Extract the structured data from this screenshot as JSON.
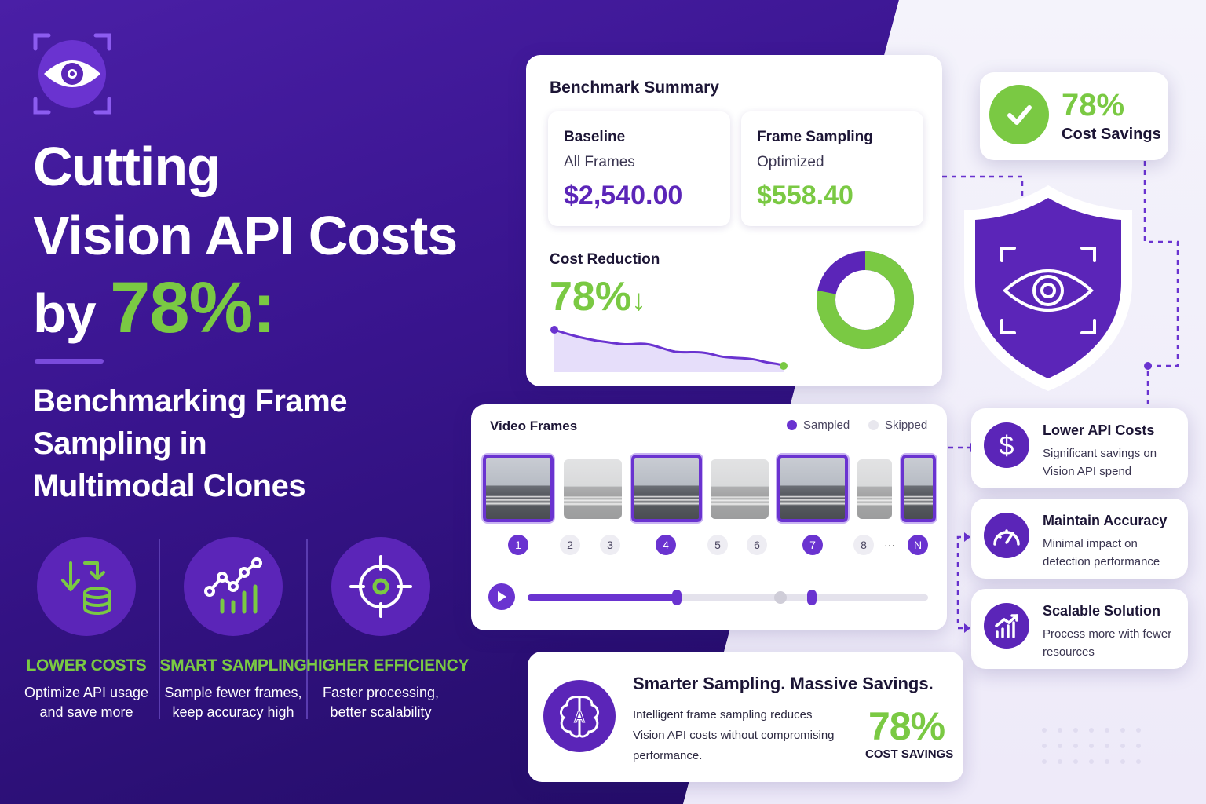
{
  "hero": {
    "line1": "Cutting",
    "line2": "Vision API Costs",
    "line3_prefix": "by",
    "line3_pct": "78%:",
    "subtitle_1": "Benchmarking Frame",
    "subtitle_2": "Sampling in",
    "subtitle_3": "Multimodal Clones"
  },
  "features": [
    {
      "title": "LOWER COSTS",
      "desc1": "Optimize API usage",
      "desc2": "and save more",
      "icon": "coins-arrow-icon"
    },
    {
      "title": "SMART SAMPLING",
      "desc1": "Sample fewer frames,",
      "desc2": "keep accuracy high",
      "icon": "chart-trend-icon"
    },
    {
      "title": "HIGHER EFFICIENCY",
      "desc1": "Faster processing,",
      "desc2": "better scalability",
      "icon": "target-icon"
    }
  ],
  "benchmark": {
    "title": "Benchmark Summary",
    "baseline": {
      "label": "Baseline",
      "sub": "All Frames",
      "value": "$2,540.00"
    },
    "sampling": {
      "label": "Frame Sampling",
      "sub": "Optimized",
      "value": "$558.40"
    },
    "reduction_label": "Cost Reduction",
    "reduction_value": "78%",
    "reduction_arrow": "↓",
    "donut": {
      "savings_fraction": 0.78,
      "colors": {
        "savings": "#7ac943",
        "remaining": "#5b25b8"
      }
    }
  },
  "savings_card": {
    "value": "78%",
    "label": "Cost Savings"
  },
  "video_frames": {
    "title": "Video Frames",
    "legend_sampled": "Sampled",
    "legend_skipped": "Skipped",
    "numbers": [
      "1",
      "2",
      "3",
      "4",
      "5",
      "6",
      "7",
      "8",
      "···",
      "N"
    ],
    "sampled": [
      true,
      false,
      false,
      true,
      false,
      false,
      true,
      false,
      false,
      true
    ],
    "progress_fraction": 0.37
  },
  "benefits": [
    {
      "title": "Lower API Costs",
      "desc": "Significant savings on Vision API spend",
      "icon": "dollar-icon"
    },
    {
      "title": "Maintain Accuracy",
      "desc": "Minimal impact on detection performance",
      "icon": "speedometer-icon"
    },
    {
      "title": "Scalable Solution",
      "desc": "Process more with fewer resources",
      "icon": "bar-chart-icon"
    }
  ],
  "smart": {
    "title": "Smarter Sampling. Massive Savings.",
    "desc": "Intelligent frame sampling reduces Vision API costs without compromising performance.",
    "value": "78%",
    "label": "COST SAVINGS",
    "icon_letter": "A"
  },
  "colors": {
    "purple": "#5b25b8",
    "green": "#7ac943",
    "dark_bg": "#2a0f73"
  }
}
